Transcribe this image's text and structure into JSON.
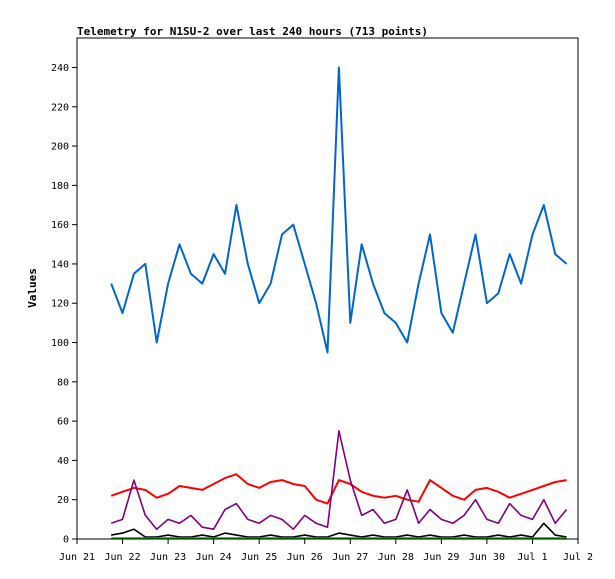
{
  "chart_data": {
    "type": "line",
    "title": "Telemetry for N1SU-2 over last 240 hours (713 points)",
    "xlabel": "",
    "ylabel": "Values",
    "ylim": [
      0,
      255
    ],
    "yticks": [
      0,
      20,
      40,
      60,
      80,
      100,
      120,
      140,
      160,
      180,
      200,
      220,
      240
    ],
    "xlim": [
      "2023-06-21",
      "2023-07-02"
    ],
    "x_tick_labels": [
      "Jun 21",
      "Jun 22",
      "Jun 23",
      "Jun 24",
      "Jun 25",
      "Jun 26",
      "Jun 27",
      "Jun 28",
      "Jun 29",
      "Jun 30",
      "Jul 1",
      "Jul 2"
    ],
    "grid": false,
    "legend": "none",
    "x": [
      "2023-06-21T18:00",
      "2023-06-22T00:00",
      "2023-06-22T06:00",
      "2023-06-22T12:00",
      "2023-06-22T18:00",
      "2023-06-23T00:00",
      "2023-06-23T06:00",
      "2023-06-23T12:00",
      "2023-06-23T18:00",
      "2023-06-24T00:00",
      "2023-06-24T06:00",
      "2023-06-24T12:00",
      "2023-06-24T18:00",
      "2023-06-25T00:00",
      "2023-06-25T06:00",
      "2023-06-25T12:00",
      "2023-06-25T18:00",
      "2023-06-26T00:00",
      "2023-06-26T06:00",
      "2023-06-26T12:00",
      "2023-06-26T18:00",
      "2023-06-27T00:00",
      "2023-06-27T06:00",
      "2023-06-27T12:00",
      "2023-06-27T18:00",
      "2023-06-28T00:00",
      "2023-06-28T06:00",
      "2023-06-28T12:00",
      "2023-06-28T18:00",
      "2023-06-29T00:00",
      "2023-06-29T06:00",
      "2023-06-29T12:00",
      "2023-06-29T18:00",
      "2023-06-30T00:00",
      "2023-06-30T06:00",
      "2023-06-30T12:00",
      "2023-06-30T18:00",
      "2023-07-01T00:00",
      "2023-07-01T06:00",
      "2023-07-01T12:00",
      "2023-07-01T18:00"
    ],
    "series": [
      {
        "color": "#0066cc",
        "values": [
          130,
          115,
          135,
          140,
          100,
          130,
          150,
          135,
          130,
          145,
          135,
          170,
          140,
          120,
          130,
          155,
          160,
          140,
          120,
          95,
          240,
          110,
          150,
          130,
          115,
          110,
          100,
          130,
          155,
          115,
          105,
          130,
          155,
          120,
          125,
          145,
          130,
          155,
          170,
          145,
          140
        ]
      },
      {
        "color": "#ff0000",
        "values": [
          22,
          24,
          26,
          25,
          21,
          23,
          27,
          26,
          25,
          28,
          31,
          33,
          28,
          26,
          29,
          30,
          28,
          27,
          20,
          18,
          30,
          28,
          24,
          22,
          21,
          22,
          20,
          19,
          30,
          26,
          22,
          20,
          25,
          26,
          24,
          21,
          23,
          25,
          27,
          29,
          30
        ]
      },
      {
        "color": "#800080",
        "values": [
          8,
          10,
          30,
          12,
          5,
          10,
          8,
          12,
          6,
          5,
          15,
          18,
          10,
          8,
          12,
          10,
          5,
          12,
          8,
          6,
          55,
          30,
          12,
          15,
          8,
          10,
          25,
          8,
          15,
          10,
          8,
          12,
          20,
          10,
          8,
          18,
          12,
          10,
          20,
          8,
          15
        ]
      },
      {
        "color": "#000000",
        "values": [
          2,
          3,
          5,
          1,
          1,
          2,
          1,
          1,
          2,
          1,
          3,
          2,
          1,
          1,
          2,
          1,
          1,
          2,
          1,
          1,
          3,
          2,
          1,
          2,
          1,
          1,
          2,
          1,
          2,
          1,
          1,
          2,
          1,
          1,
          2,
          1,
          2,
          1,
          8,
          2,
          1
        ]
      },
      {
        "color": "#00aa00",
        "values": [
          0.5,
          0.5,
          0.5,
          0.5,
          0.5,
          0.5,
          0.5,
          0.5,
          0.5,
          0.5,
          0.5,
          0.5,
          0.5,
          0.5,
          0.5,
          0.5,
          0.5,
          0.5,
          0.5,
          0.5,
          0.5,
          0.5,
          0.5,
          0.5,
          0.5,
          0.5,
          0.5,
          0.5,
          0.5,
          0.5,
          0.5,
          0.5,
          0.5,
          0.5,
          0.5,
          0.5,
          0.5,
          0.5,
          0.5,
          0.5,
          0.5
        ]
      }
    ]
  }
}
